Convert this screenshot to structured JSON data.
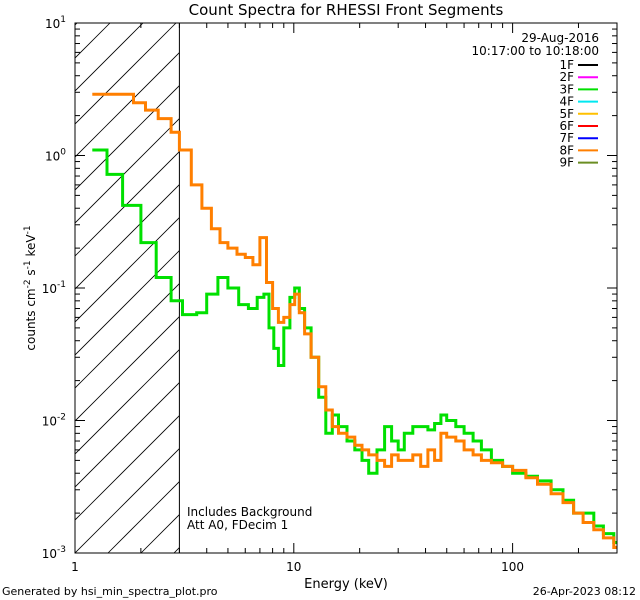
{
  "chart_data": {
    "type": "line",
    "title": "Count Spectra for RHESSI Front Segments",
    "xlabel": "Energy (keV)",
    "ylabel_parts": [
      "counts cm",
      "-2",
      " s",
      "-1",
      " keV",
      "-1"
    ],
    "x_scale": "log",
    "y_scale": "log",
    "xlim": [
      1,
      300
    ],
    "ylim": [
      0.001,
      10
    ],
    "x_major_ticks": [
      {
        "value": 1,
        "label": "1"
      },
      {
        "value": 10,
        "label": "10"
      },
      {
        "value": 100,
        "label": "100"
      }
    ],
    "y_major_ticks": [
      {
        "value": 0.001,
        "base": "10",
        "exp": "-3"
      },
      {
        "value": 0.01,
        "base": "10",
        "exp": "-2"
      },
      {
        "value": 0.1,
        "base": "10",
        "exp": "-1"
      },
      {
        "value": 1,
        "base": "10",
        "exp": "0"
      },
      {
        "value": 10,
        "base": "10",
        "exp": "1"
      }
    ],
    "shaded_region": {
      "x_from": 1,
      "x_to": 3,
      "pattern": "diagonal hatch"
    },
    "vertical_line_at": 3,
    "date": "29-Aug-2016",
    "time_range": "10:17:00 to 10:18:00",
    "legend": [
      {
        "label": "1F",
        "color": "#000000"
      },
      {
        "label": "2F",
        "color": "#ff00ff"
      },
      {
        "label": "3F",
        "color": "#00e000"
      },
      {
        "label": "4F",
        "color": "#00e8f0"
      },
      {
        "label": "5F",
        "color": "#ffc000"
      },
      {
        "label": "6F",
        "color": "#ff0000"
      },
      {
        "label": "7F",
        "color": "#0000ff"
      },
      {
        "label": "8F",
        "color": "#ff7f00"
      },
      {
        "label": "9F",
        "color": "#6b8e23"
      }
    ],
    "annotations": [
      "Includes Background",
      "Att A0, FDecim 1"
    ],
    "series": [
      {
        "name": "3F",
        "color": "#00e000",
        "points": [
          [
            1.2,
            1.1
          ],
          [
            1.4,
            0.72
          ],
          [
            1.65,
            0.42
          ],
          [
            2.0,
            0.22
          ],
          [
            2.35,
            0.12
          ],
          [
            2.75,
            0.08
          ],
          [
            3.1,
            0.063
          ],
          [
            3.6,
            0.065
          ],
          [
            4.0,
            0.09
          ],
          [
            4.5,
            0.12
          ],
          [
            5.0,
            0.1
          ],
          [
            5.6,
            0.075
          ],
          [
            6.2,
            0.07
          ],
          [
            6.8,
            0.085
          ],
          [
            7.3,
            0.09
          ],
          [
            7.7,
            0.05
          ],
          [
            8.1,
            0.035
          ],
          [
            8.5,
            0.026
          ],
          [
            9.0,
            0.05
          ],
          [
            9.6,
            0.085
          ],
          [
            10.1,
            0.1
          ],
          [
            10.6,
            0.07
          ],
          [
            11.2,
            0.05
          ],
          [
            12.0,
            0.03
          ],
          [
            13.0,
            0.015
          ],
          [
            14.0,
            0.008
          ],
          [
            15.0,
            0.011
          ],
          [
            16.0,
            0.009
          ],
          [
            17.5,
            0.007
          ],
          [
            19.0,
            0.006
          ],
          [
            20.5,
            0.005
          ],
          [
            22.0,
            0.004
          ],
          [
            24.0,
            0.006
          ],
          [
            26.0,
            0.009
          ],
          [
            28.0,
            0.007
          ],
          [
            30.0,
            0.006
          ],
          [
            32.0,
            0.008
          ],
          [
            35.0,
            0.009
          ],
          [
            38.0,
            0.009
          ],
          [
            41.0,
            0.0085
          ],
          [
            44.0,
            0.0095
          ],
          [
            47.0,
            0.011
          ],
          [
            50.0,
            0.01
          ],
          [
            55.0,
            0.009
          ],
          [
            60.0,
            0.008
          ],
          [
            66.0,
            0.007
          ],
          [
            72.0,
            0.006
          ],
          [
            80.0,
            0.005
          ],
          [
            90.0,
            0.0045
          ],
          [
            100.0,
            0.004
          ],
          [
            115.0,
            0.0038
          ],
          [
            130.0,
            0.0035
          ],
          [
            150.0,
            0.003
          ],
          [
            170.0,
            0.0025
          ],
          [
            190.0,
            0.002
          ],
          [
            210.0,
            0.002
          ],
          [
            235.0,
            0.0016
          ],
          [
            260.0,
            0.0014
          ],
          [
            290.0,
            0.0012
          ]
        ]
      },
      {
        "name": "8F",
        "color": "#ff7f00",
        "points": [
          [
            1.2,
            2.9
          ],
          [
            1.45,
            2.9
          ],
          [
            1.65,
            2.9
          ],
          [
            1.85,
            2.5
          ],
          [
            2.1,
            2.2
          ],
          [
            2.4,
            1.9
          ],
          [
            2.75,
            1.5
          ],
          [
            3.0,
            1.1
          ],
          [
            3.4,
            0.6
          ],
          [
            3.8,
            0.4
          ],
          [
            4.2,
            0.28
          ],
          [
            4.6,
            0.22
          ],
          [
            5.0,
            0.2
          ],
          [
            5.5,
            0.18
          ],
          [
            6.0,
            0.17
          ],
          [
            6.5,
            0.15
          ],
          [
            7.0,
            0.24
          ],
          [
            7.5,
            0.11
          ],
          [
            8.0,
            0.07
          ],
          [
            8.5,
            0.055
          ],
          [
            9.0,
            0.06
          ],
          [
            9.6,
            0.075
          ],
          [
            10.1,
            0.09
          ],
          [
            10.6,
            0.065
          ],
          [
            11.2,
            0.045
          ],
          [
            12.0,
            0.03
          ],
          [
            13.0,
            0.018
          ],
          [
            14.0,
            0.012
          ],
          [
            15.0,
            0.009
          ],
          [
            16.0,
            0.008
          ],
          [
            17.5,
            0.0075
          ],
          [
            19.0,
            0.0065
          ],
          [
            20.5,
            0.006
          ],
          [
            22.0,
            0.0055
          ],
          [
            24.0,
            0.005
          ],
          [
            26.0,
            0.0045
          ],
          [
            28.0,
            0.0055
          ],
          [
            30.0,
            0.005
          ],
          [
            32.0,
            0.005
          ],
          [
            35.0,
            0.0055
          ],
          [
            38.0,
            0.0045
          ],
          [
            41.0,
            0.006
          ],
          [
            44.0,
            0.005
          ],
          [
            47.0,
            0.008
          ],
          [
            50.0,
            0.0075
          ],
          [
            55.0,
            0.007
          ],
          [
            60.0,
            0.006
          ],
          [
            66.0,
            0.0055
          ],
          [
            72.0,
            0.005
          ],
          [
            80.0,
            0.0048
          ],
          [
            90.0,
            0.0045
          ],
          [
            100.0,
            0.0042
          ],
          [
            115.0,
            0.0037
          ],
          [
            130.0,
            0.0033
          ],
          [
            150.0,
            0.0028
          ],
          [
            170.0,
            0.0024
          ],
          [
            190.0,
            0.002
          ],
          [
            210.0,
            0.0017
          ],
          [
            235.0,
            0.0015
          ],
          [
            260.0,
            0.0013
          ],
          [
            290.0,
            0.0011
          ]
        ]
      }
    ]
  },
  "footer": {
    "generator": "Generated by hsi_min_spectra_plot.pro",
    "timestamp": "26-Apr-2023 08:12"
  }
}
